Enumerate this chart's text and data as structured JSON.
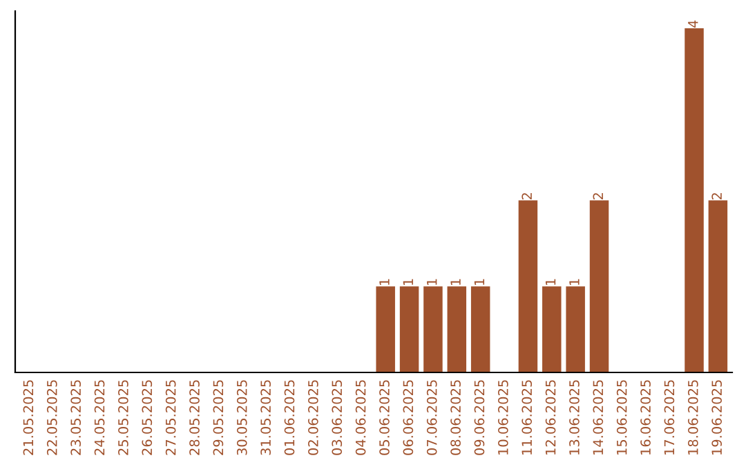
{
  "chart_data": {
    "type": "bar",
    "categories": [
      "21.05.2025",
      "22.05.2025",
      "23.05.2025",
      "24.05.2025",
      "25.05.2025",
      "26.05.2025",
      "27.05.2025",
      "28.05.2025",
      "29.05.2025",
      "30.05.2025",
      "31.05.2025",
      "01.06.2025",
      "02.06.2025",
      "03.06.2025",
      "04.06.2025",
      "05.06.2025",
      "06.06.2025",
      "07.06.2025",
      "08.06.2025",
      "09.06.2025",
      "10.06.2025",
      "11.06.2025",
      "12.06.2025",
      "13.06.2025",
      "14.06.2025",
      "15.06.2025",
      "16.06.2025",
      "17.06.2025",
      "18.06.2025",
      "19.06.2025"
    ],
    "values": [
      null,
      null,
      null,
      null,
      null,
      null,
      null,
      null,
      null,
      null,
      null,
      null,
      null,
      null,
      null,
      1,
      1,
      1,
      1,
      1,
      null,
      2,
      1,
      1,
      2,
      null,
      null,
      null,
      4,
      2
    ],
    "value_labels": [
      null,
      null,
      null,
      null,
      null,
      null,
      null,
      null,
      null,
      null,
      null,
      null,
      null,
      null,
      null,
      "1",
      "1",
      "1",
      "1",
      "1",
      null,
      "2",
      "1",
      "1",
      "2",
      null,
      null,
      null,
      "4",
      "2"
    ],
    "color": "#a0522d",
    "grid": false,
    "tick_labels": "x"
  }
}
